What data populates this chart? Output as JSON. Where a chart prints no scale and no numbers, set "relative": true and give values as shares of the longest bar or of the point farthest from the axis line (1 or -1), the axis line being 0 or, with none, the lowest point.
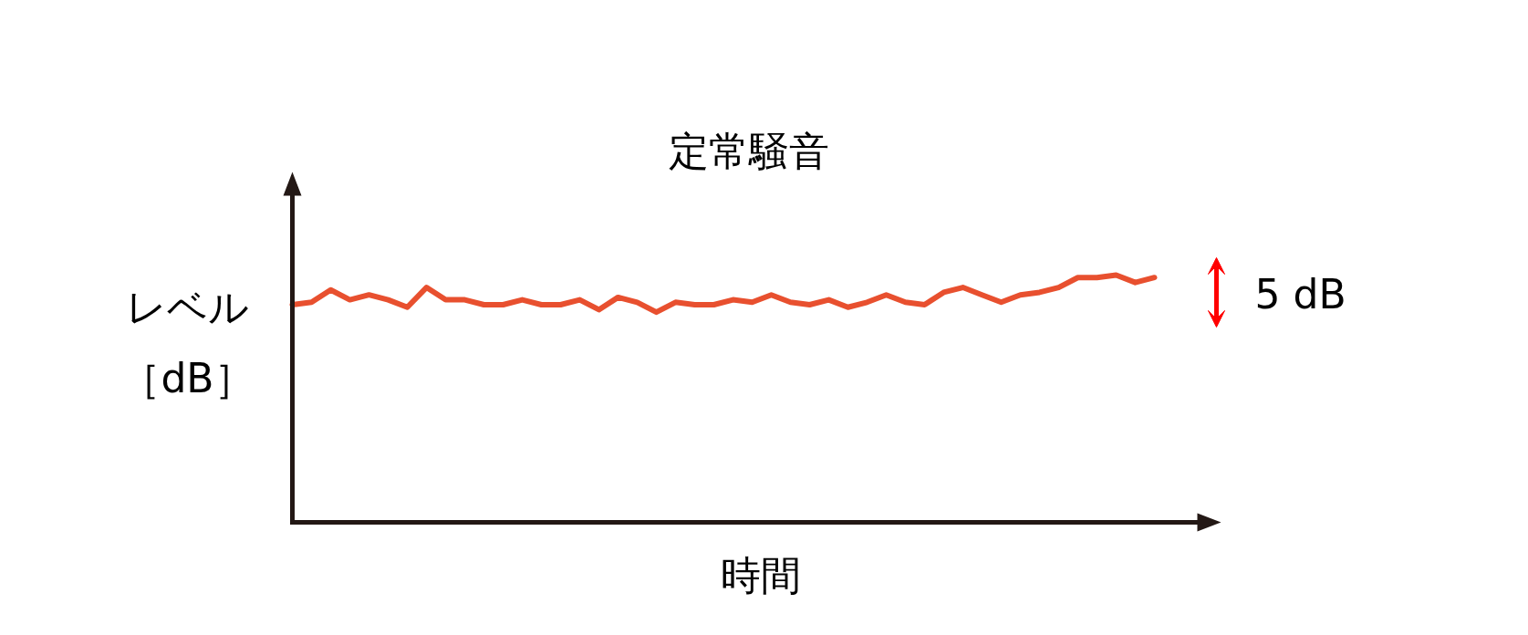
{
  "chart_data": {
    "type": "line",
    "title": "定常騒音",
    "xlabel": "時間",
    "ylabel": "レベル［dB］",
    "relative": true,
    "annotations": [
      "5 dB"
    ],
    "categories": [
      null,
      null,
      null,
      null,
      null,
      null,
      null,
      null,
      null,
      null,
      null,
      null,
      null,
      null,
      null,
      null,
      null,
      null,
      null,
      null,
      null,
      null,
      null,
      null,
      null,
      null,
      null,
      null,
      null,
      null,
      null,
      null,
      null,
      null,
      null,
      null,
      null,
      null,
      null,
      null,
      null,
      null,
      null,
      null,
      null,
      null
    ],
    "series": [
      {
        "color": "#e8502f",
        "values": [
          0.88,
          0.89,
          0.94,
          0.9,
          0.92,
          0.9,
          0.87,
          0.95,
          0.9,
          0.9,
          0.88,
          0.88,
          0.9,
          0.88,
          0.88,
          0.9,
          0.86,
          0.91,
          0.89,
          0.85,
          0.89,
          0.88,
          0.88,
          0.9,
          0.89,
          0.92,
          0.89,
          0.88,
          0.9,
          0.87,
          0.89,
          0.92,
          0.89,
          0.88,
          0.93,
          0.95,
          0.92,
          0.89,
          0.92,
          0.93,
          0.95,
          0.99,
          0.99,
          1.0,
          0.97,
          0.99
        ]
      }
    ]
  }
}
